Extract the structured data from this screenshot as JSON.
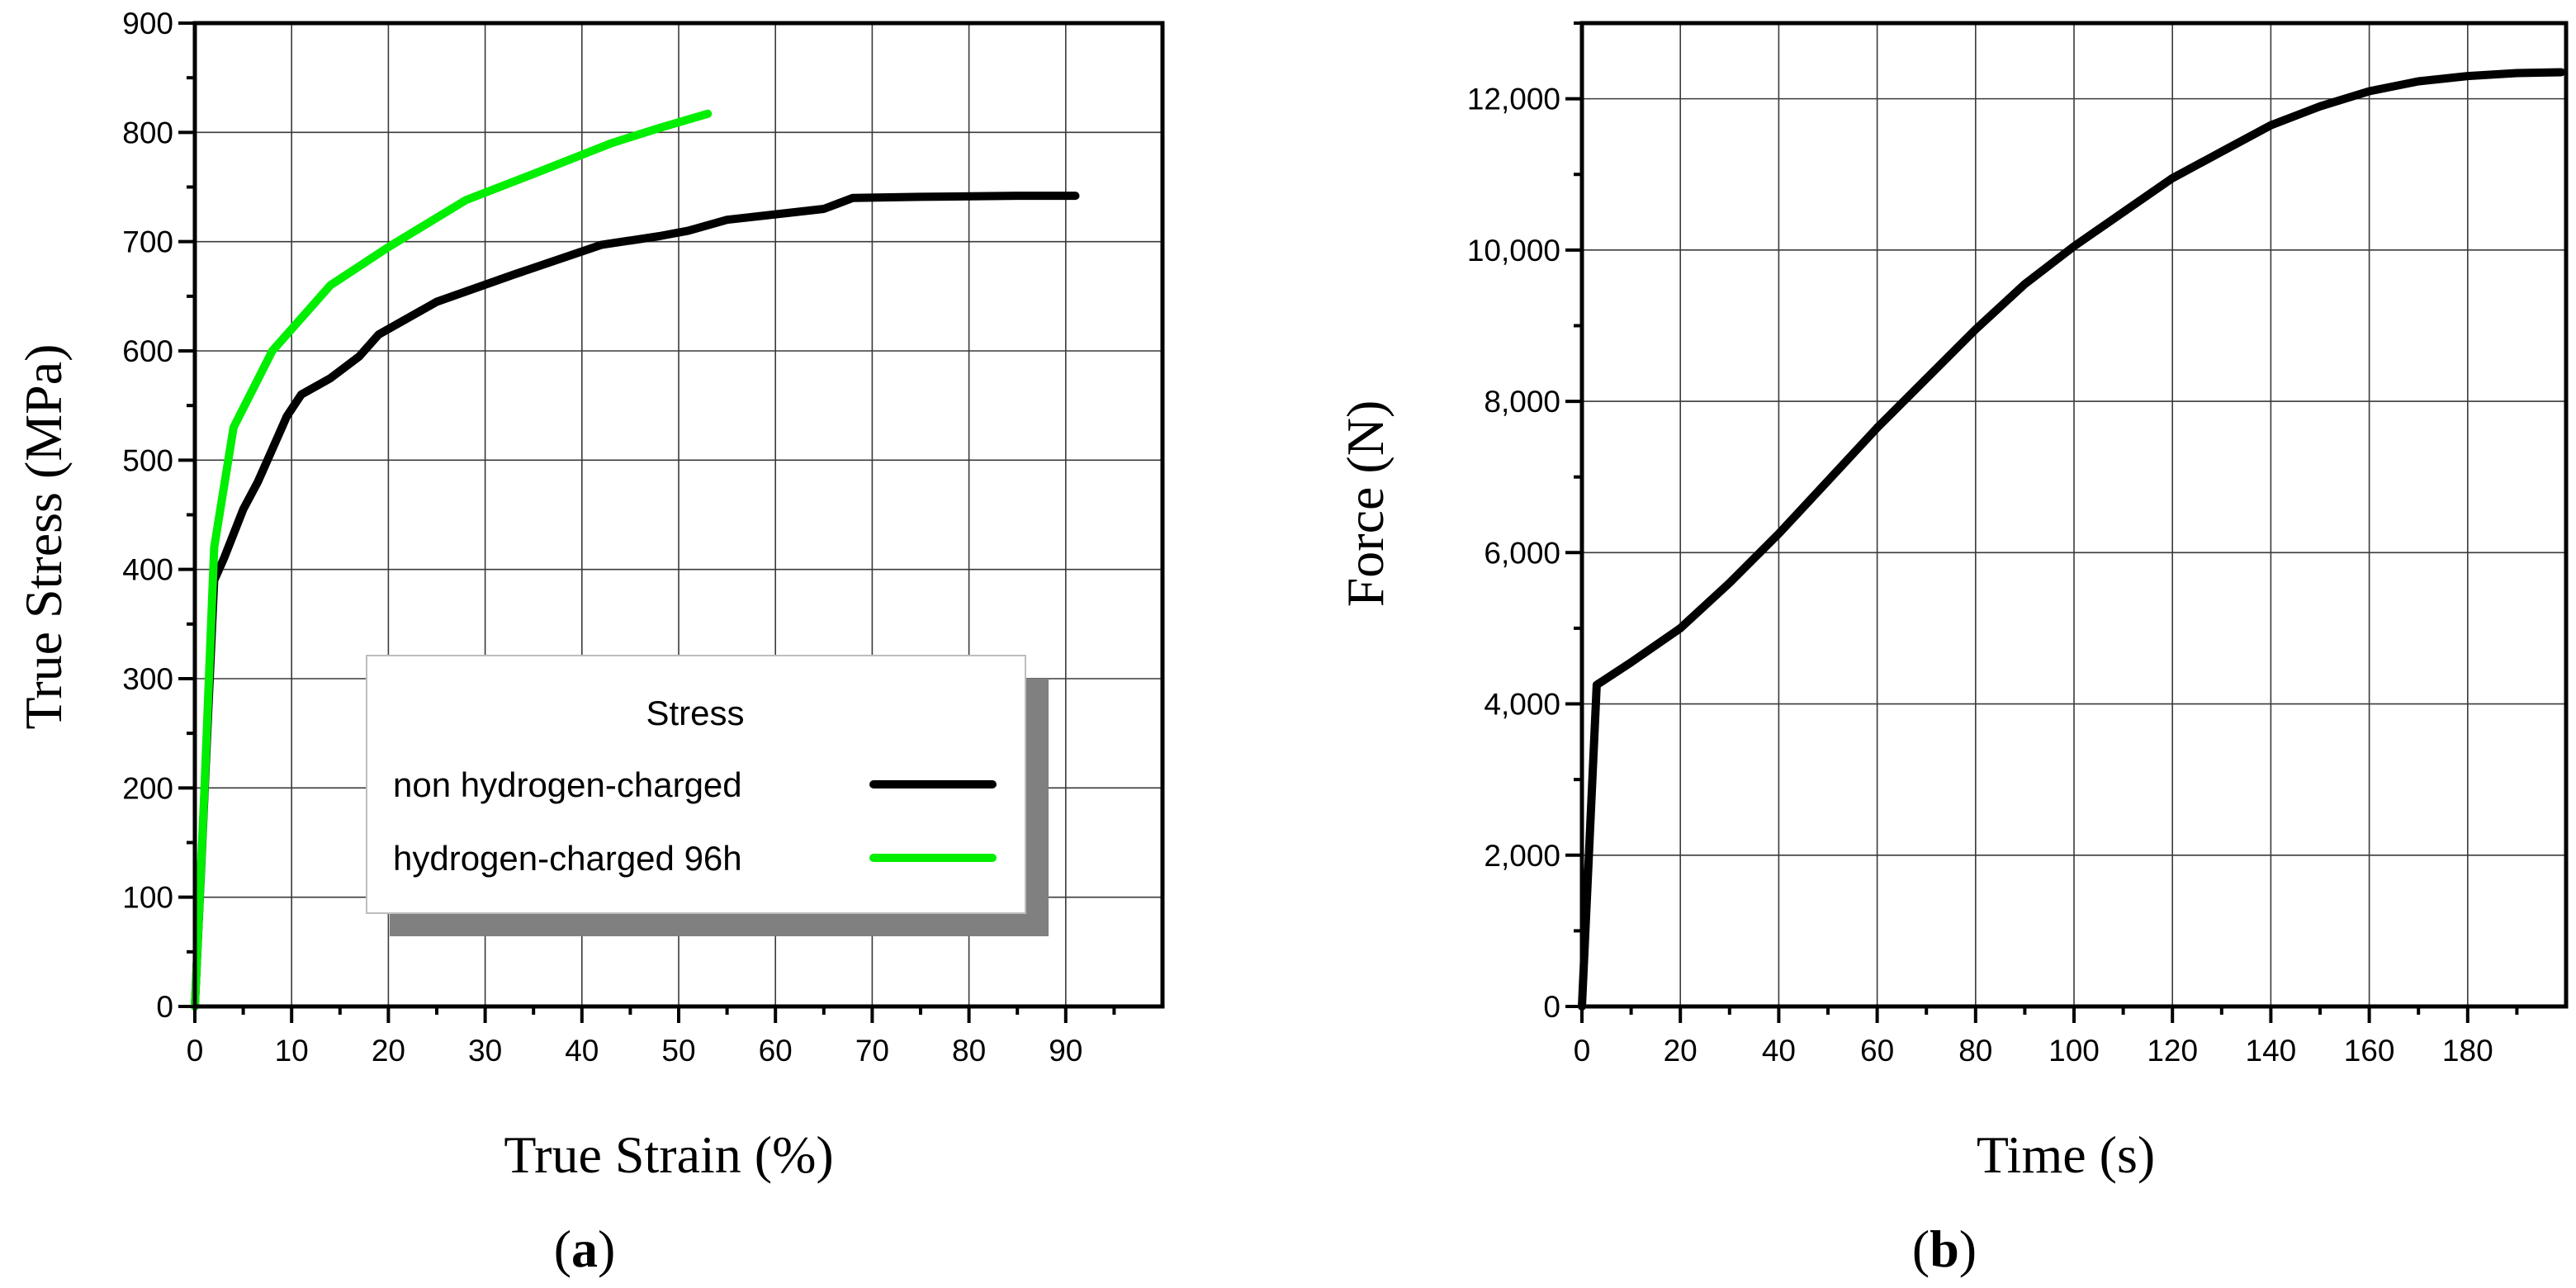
{
  "chart_data": [
    {
      "panel_label": "a",
      "type": "line",
      "xlabel": "True Strain (%)",
      "ylabel": "True Stress (MPa)",
      "xlim": [
        0,
        100
      ],
      "ylim": [
        0,
        900
      ],
      "xticks": [
        0,
        10,
        20,
        30,
        40,
        50,
        60,
        70,
        80,
        90
      ],
      "xtick_labels": [
        "0",
        "10",
        "20",
        "30",
        "40",
        "50",
        "60",
        "70",
        "80",
        "90"
      ],
      "yticks": [
        0,
        100,
        200,
        300,
        400,
        500,
        600,
        700,
        800,
        900
      ],
      "ytick_labels": [
        "0",
        "100",
        "200",
        "300",
        "400",
        "500",
        "600",
        "700",
        "800",
        "900"
      ],
      "grid": true,
      "legend": {
        "title": "Stress",
        "placement": "center-right",
        "entries": [
          "non hydrogen-charged",
          "hydrogen-charged 96h"
        ]
      },
      "series": [
        {
          "name": "non hydrogen-charged",
          "color": "#000000",
          "points": [
            [
              0,
              0
            ],
            [
              2,
              390
            ],
            [
              3,
              410
            ],
            [
              5,
              455
            ],
            [
              6.5,
              480
            ],
            [
              8,
              510
            ],
            [
              9.5,
              540
            ],
            [
              11,
              560
            ],
            [
              14,
              575
            ],
            [
              17,
              595
            ],
            [
              19,
              615
            ],
            [
              25,
              645
            ],
            [
              33,
              670
            ],
            [
              42,
              697
            ],
            [
              48,
              705
            ],
            [
              51,
              710
            ],
            [
              55,
              720
            ],
            [
              60,
              725
            ],
            [
              65,
              730
            ],
            [
              68,
              740
            ],
            [
              75,
              741
            ],
            [
              85,
              742
            ],
            [
              91,
              742
            ]
          ]
        },
        {
          "name": "hydrogen-charged 96h",
          "color": "#00ee00",
          "points": [
            [
              0,
              0
            ],
            [
              1,
              200
            ],
            [
              2,
              420
            ],
            [
              4,
              530
            ],
            [
              8,
              600
            ],
            [
              14,
              660
            ],
            [
              20,
              695
            ],
            [
              28,
              738
            ],
            [
              35,
              762
            ],
            [
              43,
              790
            ],
            [
              48,
              804
            ],
            [
              53,
              817
            ]
          ]
        }
      ]
    },
    {
      "panel_label": "b",
      "type": "line",
      "xlabel": "Time (s)",
      "ylabel": "Force (N)",
      "xlim": [
        0,
        200
      ],
      "ylim": [
        0,
        13000
      ],
      "xticks": [
        0,
        20,
        40,
        60,
        80,
        100,
        120,
        140,
        160,
        180
      ],
      "xtick_labels": [
        "0",
        "20",
        "40",
        "60",
        "80",
        "100",
        "120",
        "140",
        "160",
        "180"
      ],
      "yticks": [
        0,
        2000,
        4000,
        6000,
        8000,
        10000,
        12000
      ],
      "ytick_labels": [
        "0",
        "2,000",
        "4,000",
        "6,000",
        "8,000",
        "10,000",
        "12,000"
      ],
      "grid": true,
      "series": [
        {
          "name": "Force",
          "color": "#000000",
          "points": [
            [
              0,
              0
            ],
            [
              3,
              4250
            ],
            [
              10,
              4550
            ],
            [
              20,
              5000
            ],
            [
              30,
              5600
            ],
            [
              40,
              6250
            ],
            [
              50,
              6950
            ],
            [
              60,
              7650
            ],
            [
              70,
              8300
            ],
            [
              80,
              8950
            ],
            [
              90,
              9550
            ],
            [
              100,
              10050
            ],
            [
              110,
              10500
            ],
            [
              120,
              10950
            ],
            [
              130,
              11300
            ],
            [
              140,
              11650
            ],
            [
              150,
              11900
            ],
            [
              160,
              12100
            ],
            [
              170,
              12230
            ],
            [
              180,
              12300
            ],
            [
              190,
              12340
            ],
            [
              199,
              12350
            ]
          ]
        }
      ]
    }
  ]
}
